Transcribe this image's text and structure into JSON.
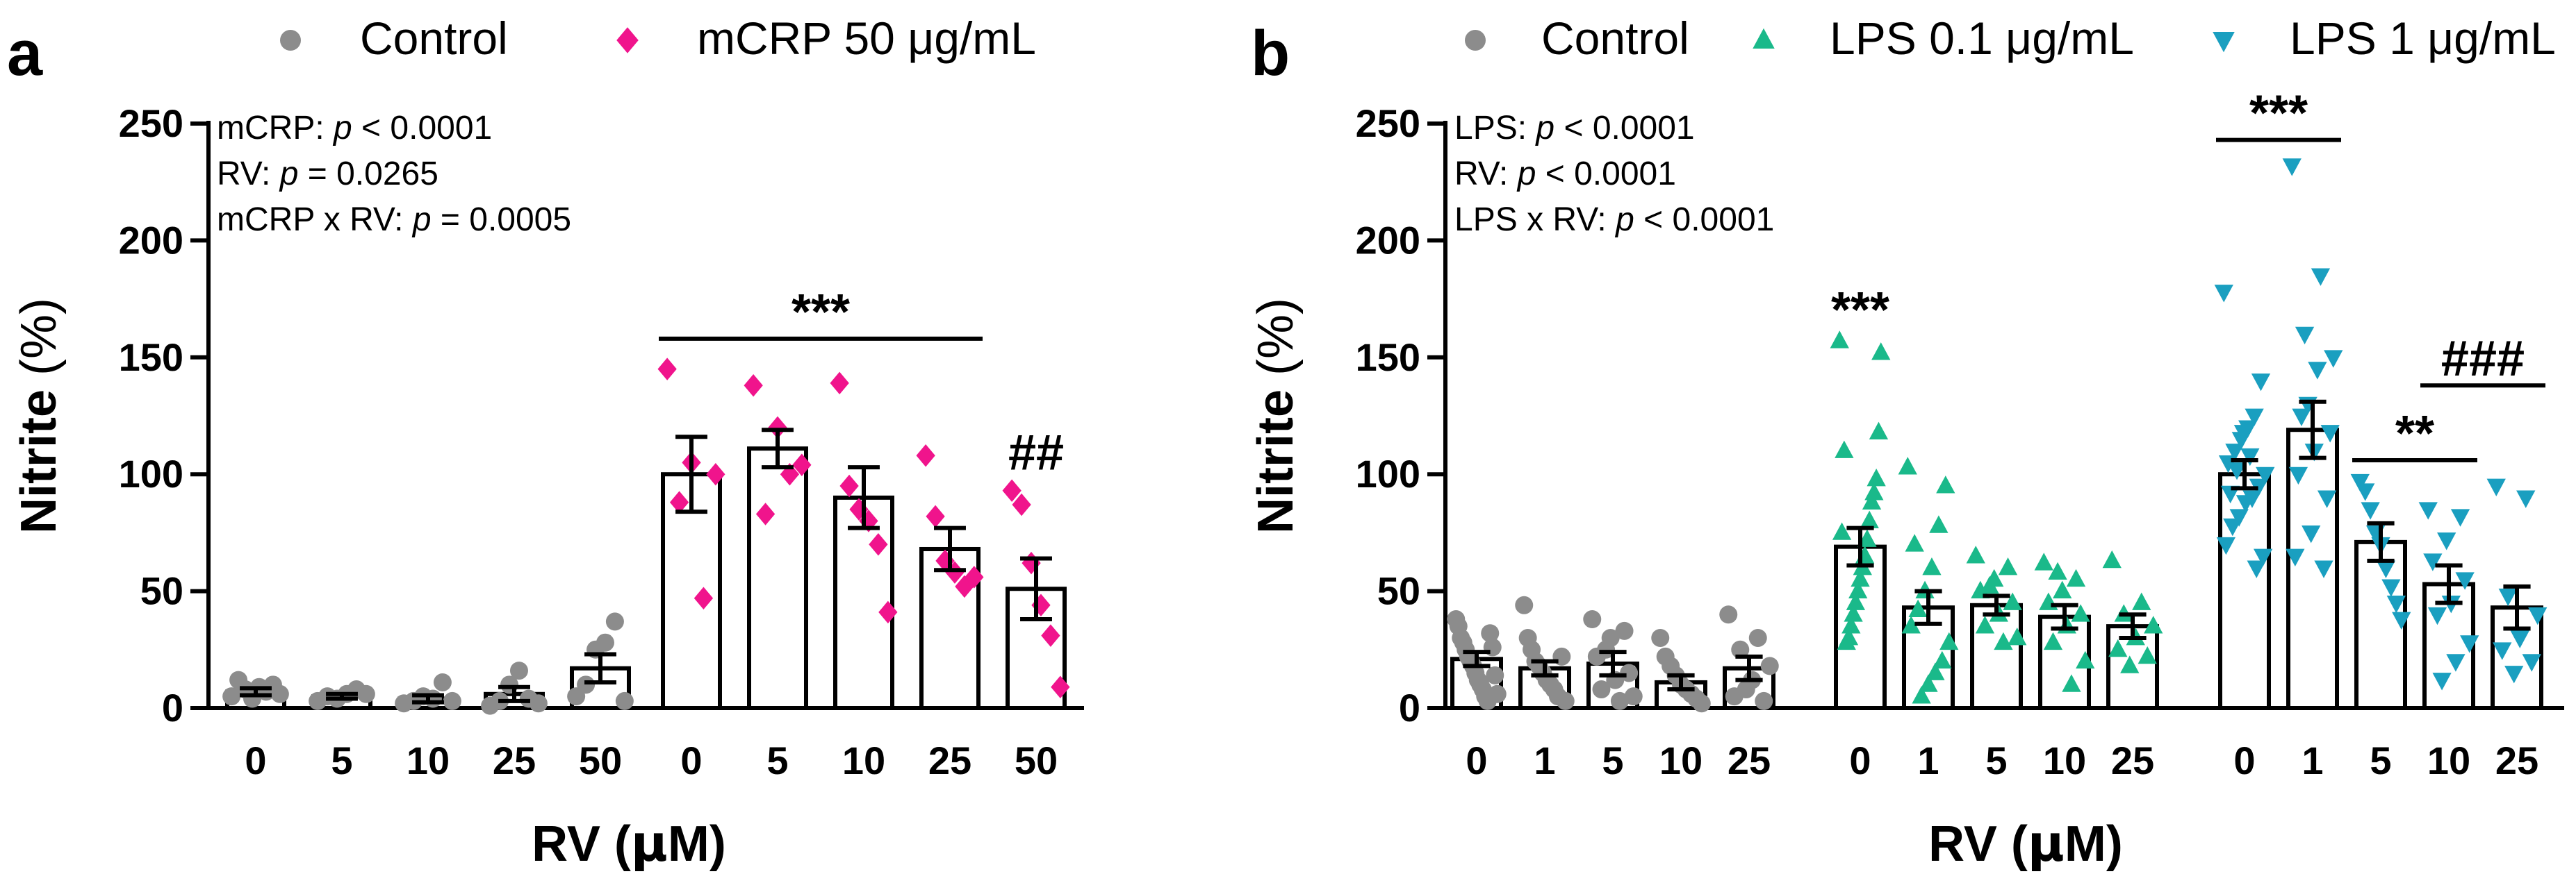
{
  "chart_data": [
    {
      "panel": "a",
      "type": "bar",
      "ylabel": "Nitrite",
      "ylabel_unit": "(%)",
      "xlabel": "RV",
      "xlabel_unit": "(μM)",
      "ylim": [
        0,
        250
      ],
      "yticks": [
        0,
        50,
        100,
        150,
        200,
        250
      ],
      "legend": [
        {
          "name": "Control",
          "marker": "circle",
          "color": "#8c8c8c"
        },
        {
          "name": "mCRP 50 μg/mL",
          "marker": "diamond",
          "color": "#f0148c"
        }
      ],
      "stats": [
        {
          "term": "mCRP:",
          "p_label": "p",
          "relation": "< 0.0001"
        },
        {
          "term": "RV:",
          "p_label": "p",
          "relation": "= 0.0265"
        },
        {
          "term": "mCRP x RV:",
          "p_label": "p",
          "relation": "= 0.0005"
        }
      ],
      "groups": [
        {
          "name": "Control",
          "color": "#8c8c8c",
          "marker": "circle",
          "bars": [
            {
              "rv": "0",
              "mean": 7,
              "sem": 1.5,
              "points": [
                5,
                7,
                8,
                6,
                9,
                12,
                10,
                4
              ]
            },
            {
              "rv": "5",
              "mean": 5,
              "sem": 1,
              "points": [
                3,
                5,
                4,
                6,
                8,
                6
              ]
            },
            {
              "rv": "10",
              "mean": 4,
              "sem": 1.5,
              "points": [
                2,
                3,
                5,
                4,
                11,
                3
              ]
            },
            {
              "rv": "25",
              "mean": 6,
              "sem": 3,
              "points": [
                1,
                3,
                10,
                16,
                4,
                2
              ]
            },
            {
              "rv": "50",
              "mean": 17,
              "sem": 6,
              "points": [
                5,
                10,
                25,
                28,
                37,
                3
              ]
            }
          ]
        },
        {
          "name": "mCRP 50 μg/mL",
          "color": "#f0148c",
          "marker": "diamond",
          "bars": [
            {
              "rv": "0",
              "mean": 100,
              "sem": 16,
              "points": [
                145,
                105,
                100,
                88,
                47
              ]
            },
            {
              "rv": "5",
              "mean": 111,
              "sem": 8,
              "points": [
                138,
                120,
                104,
                83,
                100
              ]
            },
            {
              "rv": "10",
              "mean": 90,
              "sem": 13,
              "points": [
                139,
                95,
                85,
                80,
                70,
                41
              ]
            },
            {
              "rv": "25",
              "mean": 68,
              "sem": 9,
              "points": [
                108,
                82,
                63,
                58,
                52,
                56
              ]
            },
            {
              "rv": "50",
              "mean": 51,
              "sem": 13,
              "points": [
                93,
                87,
                62,
                44,
                31,
                9
              ]
            }
          ]
        }
      ],
      "annotations": [
        {
          "text": "***",
          "over_group": 1,
          "from": 0,
          "to": 3,
          "y": 158
        },
        {
          "text": "##",
          "over_group": 1,
          "from": 4,
          "to": 4,
          "y": 102
        }
      ]
    },
    {
      "panel": "b",
      "type": "bar",
      "ylabel": "Nitrite",
      "ylabel_unit": "(%)",
      "xlabel": "RV",
      "xlabel_unit": "(μM)",
      "ylim": [
        0,
        250
      ],
      "yticks": [
        0,
        50,
        100,
        150,
        200,
        250
      ],
      "legend": [
        {
          "name": "Control",
          "marker": "circle",
          "color": "#8c8c8c"
        },
        {
          "name": "LPS 0.1 μg/mL",
          "marker": "triangle-up",
          "color": "#1ab98a"
        },
        {
          "name": "LPS 1 μg/mL",
          "marker": "triangle-down",
          "color": "#1a9fc0"
        }
      ],
      "stats": [
        {
          "term": "LPS:",
          "p_label": "p",
          "relation": "< 0.0001"
        },
        {
          "term": "RV:",
          "p_label": "p",
          "relation": "< 0.0001"
        },
        {
          "term": "LPS x RV:",
          "p_label": "p",
          "relation": "< 0.0001"
        }
      ],
      "groups": [
        {
          "name": "Control",
          "color": "#8c8c8c",
          "marker": "circle",
          "bars": [
            {
              "rv": "0",
              "mean": 21,
              "sem": 3,
              "points": [
                38,
                35,
                30,
                28,
                25,
                22,
                20,
                18,
                15,
                12,
                10,
                8,
                5,
                3,
                32,
                26,
                14,
                6
              ]
            },
            {
              "rv": "1",
              "mean": 17,
              "sem": 3,
              "points": [
                44,
                30,
                25,
                20,
                18,
                15,
                12,
                10,
                8,
                5,
                22,
                3
              ]
            },
            {
              "rv": "5",
              "mean": 19,
              "sem": 5,
              "points": [
                38,
                33,
                30,
                22,
                15,
                12,
                8,
                5,
                3,
                25
              ]
            },
            {
              "rv": "10",
              "mean": 11,
              "sem": 3,
              "points": [
                30,
                22,
                18,
                14,
                10,
                8,
                6,
                4,
                2
              ]
            },
            {
              "rv": "25",
              "mean": 17,
              "sem": 5,
              "points": [
                40,
                30,
                25,
                18,
                12,
                5,
                3,
                8
              ]
            }
          ]
        },
        {
          "name": "LPS 0.1 μg/mL",
          "color": "#1ab98a",
          "marker": "triangle-up",
          "bars": [
            {
              "rv": "0",
              "mean": 69,
              "sem": 8,
              "points": [
                157,
                152,
                118,
                98,
                92,
                88,
                80,
                72,
                65,
                60,
                55,
                50,
                45,
                40,
                35,
                30,
                28,
                110,
                75
              ]
            },
            {
              "rv": "1",
              "mean": 43,
              "sem": 7,
              "points": [
                103,
                95,
                78,
                60,
                50,
                42,
                35,
                28,
                20,
                15,
                10,
                5,
                70
              ]
            },
            {
              "rv": "5",
              "mean": 44,
              "sem": 4,
              "points": [
                65,
                60,
                55,
                50,
                45,
                40,
                35,
                30,
                28,
                52
              ]
            },
            {
              "rv": "10",
              "mean": 39,
              "sem": 5,
              "points": [
                62,
                55,
                50,
                45,
                40,
                35,
                28,
                20,
                10,
                58
              ]
            },
            {
              "rv": "25",
              "mean": 35,
              "sem": 5,
              "points": [
                63,
                45,
                40,
                35,
                30,
                25,
                22,
                18
              ]
            }
          ]
        },
        {
          "name": "LPS 1 μg/mL",
          "color": "#1a9fc0",
          "marker": "triangle-down",
          "bars": [
            {
              "rv": "0",
              "mean": 100,
              "sem": 6,
              "points": [
                178,
                140,
                125,
                120,
                115,
                110,
                105,
                100,
                95,
                90,
                88,
                82,
                78,
                70,
                65,
                60,
                108,
                118,
                102,
                92
              ]
            },
            {
              "rv": "1",
              "mean": 119,
              "sem": 12,
              "points": [
                232,
                185,
                160,
                150,
                145,
                125,
                118,
                110,
                100,
                90,
                75,
                65,
                60,
                130
              ]
            },
            {
              "rv": "5",
              "mean": 71,
              "sem": 8,
              "points": [
                97,
                93,
                85,
                75,
                70,
                60,
                52,
                45,
                38
              ]
            },
            {
              "rv": "10",
              "mean": 53,
              "sem": 8,
              "points": [
                85,
                82,
                72,
                63,
                55,
                45,
                40,
                28,
                20,
                12
              ]
            },
            {
              "rv": "25",
              "mean": 43,
              "sem": 9,
              "points": [
                95,
                90,
                48,
                40,
                30,
                25,
                20,
                15
              ]
            }
          ]
        }
      ],
      "annotations": [
        {
          "text": "***",
          "over_group": 1,
          "from": 0,
          "to": 0,
          "y": 163
        },
        {
          "text": "***",
          "over_group": 2,
          "from": 0,
          "to": 1,
          "y": 243
        },
        {
          "text": "**",
          "over_group": 2,
          "from": 2,
          "to": 3,
          "y": 106
        },
        {
          "text": "###",
          "over_group": 2,
          "from": 3,
          "to": 4,
          "y": 138
        }
      ]
    }
  ]
}
